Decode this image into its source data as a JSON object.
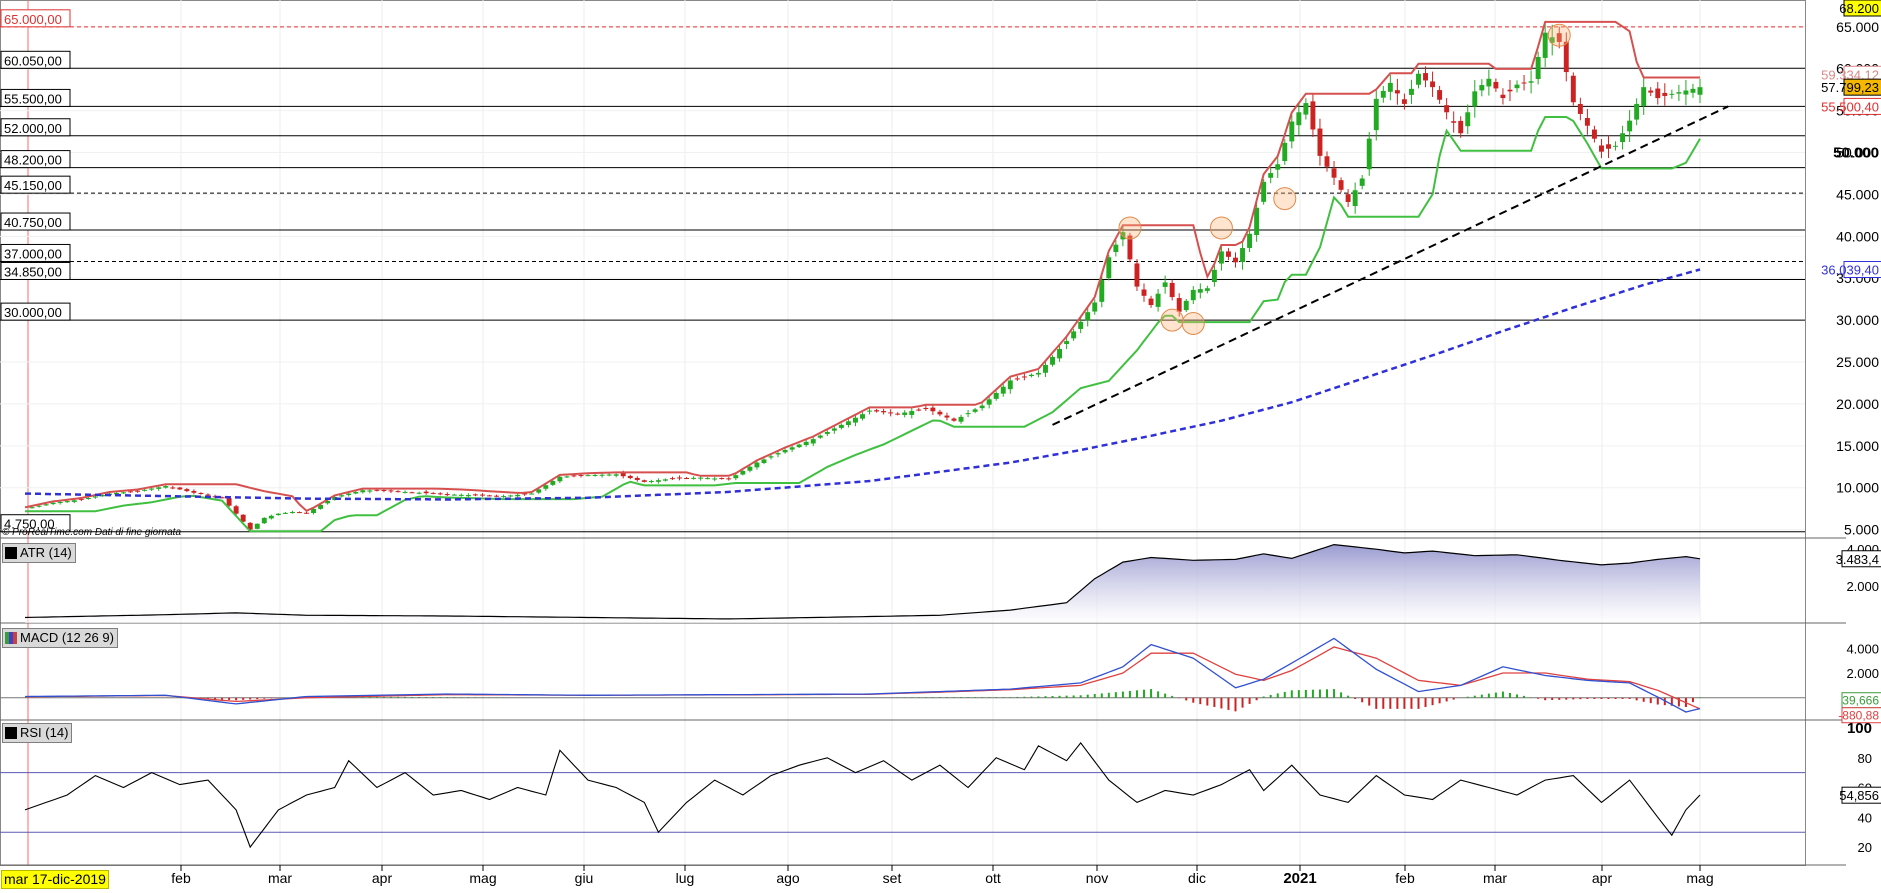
{
  "chart_data": [
    {
      "pane": "price",
      "type": "line",
      "title": "",
      "ylim": [
        4000,
        68200
      ],
      "x_months": [
        "feb",
        "mar",
        "apr",
        "mag",
        "giu",
        "lug",
        "ago",
        "set",
        "ott",
        "nov",
        "dic",
        "2021",
        "feb",
        "mar",
        "apr",
        "mag"
      ],
      "y_ticks": [
        "5.000",
        "10.000",
        "15.000",
        "20.000",
        "25.000",
        "30.000",
        "35.000",
        "40.000",
        "45.000",
        "50.000",
        "55.000",
        "60.000",
        "65.000"
      ],
      "y_tick_values": [
        5000,
        10000,
        15000,
        20000,
        25000,
        30000,
        35000,
        40000,
        45000,
        50000,
        55000,
        60000,
        65000
      ],
      "level_labels": [
        "65.000,00",
        "60.050,00",
        "55.500,00",
        "52.000,00",
        "48.200,00",
        "45.150,00",
        "40.750,00",
        "37.000,00",
        "34.850,00",
        "30.000,00",
        "4.750,00"
      ],
      "level_values": [
        65000,
        60050,
        55500,
        52000,
        48200,
        45150,
        40750,
        37000,
        34850,
        30000,
        4750
      ],
      "right_value_labels": [
        "68.200",
        "59.334,12",
        "57.799,23",
        "55.500,40",
        "50.000",
        "36.039,40"
      ],
      "right_value_values": [
        68200,
        59334.12,
        57799.23,
        55500.4,
        50000,
        36039.4
      ],
      "price_path": {
        "x_index": [
          0,
          4,
          8,
          12,
          16,
          20,
          24,
          28,
          32,
          34,
          36,
          38,
          40,
          44,
          48,
          52,
          56,
          60,
          64,
          68,
          72,
          76,
          80,
          84,
          88,
          92,
          96,
          100,
          104,
          108,
          112,
          116,
          120,
          124,
          128,
          132,
          136,
          140,
          144,
          148,
          150,
          152,
          154,
          156,
          158,
          160,
          162,
          164,
          166,
          168,
          170,
          172,
          174,
          176,
          178,
          180,
          182,
          184,
          186,
          188,
          190,
          192,
          194,
          196,
          198,
          200,
          202,
          204,
          206,
          208,
          210,
          212,
          214,
          216,
          218,
          220,
          222,
          224,
          226,
          228,
          230,
          232,
          234,
          236,
          238
        ],
        "close": [
          7500,
          8200,
          8600,
          9300,
          9600,
          10200,
          9400,
          8800,
          5000,
          6400,
          6900,
          7100,
          7000,
          8900,
          9700,
          9600,
          9400,
          9200,
          9100,
          9000,
          9300,
          11300,
          11500,
          11600,
          10700,
          11100,
          11200,
          11000,
          13000,
          14500,
          15800,
          17500,
          19200,
          18800,
          19500,
          18000,
          19800,
          22800,
          23700,
          27500,
          29800,
          32100,
          37500,
          40500,
          34000,
          31800,
          34500,
          31000,
          33600,
          33800,
          38200,
          36900,
          40300,
          46500,
          48600,
          53700,
          55900,
          49600,
          47000,
          44100,
          46900,
          56400,
          58300,
          55800,
          59400,
          57800,
          54800,
          52300,
          57300,
          58800,
          56500,
          58100,
          58500,
          64300,
          63200,
          56000,
          53200,
          50100,
          50800,
          53800,
          57800,
          56500,
          57000,
          57400,
          57799
        ]
      },
      "sma_blue": {
        "x_index": [
          0,
          20,
          40,
          60,
          80,
          100,
          120,
          140,
          150,
          160,
          170,
          180,
          190,
          200,
          210,
          220,
          230,
          238
        ],
        "values": [
          9300,
          9000,
          8700,
          8600,
          8800,
          9500,
          10800,
          13000,
          14500,
          16200,
          18000,
          20200,
          23000,
          25800,
          28700,
          31500,
          34200,
          36039
        ]
      }
    },
    {
      "pane": "atr",
      "type": "area",
      "title": "ATR (14)",
      "ylim": [
        0,
        4500
      ],
      "y_ticks": [
        "2.000",
        "4.000"
      ],
      "y_tick_values": [
        2000,
        4000
      ],
      "last_value_label": "3.483,4",
      "series": [
        {
          "name": "ATR (14)",
          "x_index": [
            0,
            20,
            30,
            40,
            60,
            80,
            100,
            120,
            130,
            140,
            148,
            152,
            156,
            160,
            166,
            172,
            176,
            180,
            186,
            192,
            196,
            200,
            206,
            212,
            218,
            224,
            228,
            232,
            236,
            238
          ],
          "values": [
            300,
            450,
            550,
            420,
            380,
            300,
            220,
            350,
            420,
            700,
            1100,
            2400,
            3300,
            3550,
            3400,
            3450,
            3750,
            3500,
            4250,
            4000,
            3800,
            3900,
            3650,
            3700,
            3400,
            3150,
            3250,
            3450,
            3600,
            3483
          ]
        }
      ]
    },
    {
      "pane": "macd",
      "type": "line",
      "title": "MACD (12 26 9)",
      "ylim": [
        -1800,
        5800
      ],
      "y_ticks": [
        "2.000",
        "4.000"
      ],
      "y_tick_values": [
        2000,
        4000
      ],
      "last_value_labels": [
        "39,666",
        "-880,88"
      ],
      "series": [
        {
          "name": "MACD",
          "x_index": [
            0,
            20,
            30,
            40,
            60,
            80,
            100,
            120,
            130,
            140,
            150,
            156,
            160,
            166,
            172,
            176,
            180,
            186,
            192,
            198,
            204,
            210,
            216,
            222,
            228,
            232,
            236,
            238
          ],
          "values": [
            100,
            200,
            -500,
            100,
            300,
            200,
            250,
            300,
            500,
            700,
            1200,
            2500,
            4300,
            3200,
            800,
            1500,
            2800,
            4800,
            2300,
            500,
            1000,
            2500,
            1800,
            1400,
            1200,
            50,
            -1150,
            -880
          ]
        },
        {
          "name": "Signal",
          "x_index": [
            0,
            20,
            30,
            40,
            60,
            80,
            100,
            120,
            130,
            140,
            150,
            156,
            160,
            166,
            172,
            176,
            180,
            186,
            192,
            198,
            204,
            210,
            216,
            222,
            228,
            232,
            236,
            238
          ],
          "values": [
            80,
            180,
            -300,
            0,
            250,
            200,
            230,
            280,
            450,
            650,
            1000,
            2000,
            3600,
            3600,
            1900,
            1400,
            2200,
            4100,
            3200,
            1400,
            1000,
            2000,
            2000,
            1500,
            1300,
            600,
            -400,
            -900
          ]
        },
        {
          "name": "Histogram",
          "x_index": [
            0,
            20,
            30,
            40,
            60,
            80,
            100,
            120,
            130,
            140,
            150,
            156,
            160,
            166,
            172,
            176,
            180,
            186,
            192,
            198,
            204,
            210,
            216,
            222,
            228,
            232,
            236,
            238
          ],
          "values": [
            20,
            20,
            -200,
            100,
            50,
            0,
            20,
            20,
            50,
            50,
            200,
            500,
            700,
            -400,
            -1100,
            100,
            600,
            700,
            -900,
            -900,
            0,
            500,
            -200,
            -100,
            -100,
            -550,
            -750,
            40
          ]
        }
      ]
    },
    {
      "pane": "rsi",
      "type": "line",
      "title": "RSI (14)",
      "ylim": [
        8,
        104
      ],
      "y_ticks": [
        "20",
        "40",
        "60",
        "80",
        "100"
      ],
      "y_tick_values": [
        20,
        40,
        60,
        80,
        100
      ],
      "bands": [
        70,
        30
      ],
      "last_value_label": "54,856",
      "series": [
        {
          "name": "RSI (14)",
          "x_index": [
            0,
            6,
            10,
            14,
            18,
            22,
            26,
            30,
            32,
            36,
            40,
            44,
            46,
            50,
            54,
            58,
            62,
            66,
            70,
            74,
            76,
            80,
            84,
            88,
            90,
            94,
            98,
            102,
            106,
            110,
            114,
            118,
            122,
            126,
            130,
            134,
            138,
            142,
            144,
            148,
            150,
            154,
            158,
            162,
            166,
            170,
            174,
            176,
            180,
            184,
            188,
            192,
            196,
            200,
            204,
            208,
            212,
            216,
            220,
            224,
            228,
            232,
            234,
            236,
            238
          ],
          "values": [
            45,
            55,
            68,
            60,
            70,
            62,
            65,
            45,
            20,
            45,
            55,
            60,
            78,
            60,
            70,
            55,
            58,
            52,
            60,
            55,
            85,
            65,
            60,
            50,
            30,
            50,
            65,
            55,
            68,
            75,
            80,
            70,
            78,
            65,
            75,
            60,
            80,
            72,
            88,
            78,
            90,
            65,
            50,
            58,
            55,
            62,
            72,
            58,
            75,
            55,
            50,
            68,
            55,
            52,
            65,
            60,
            55,
            65,
            68,
            50,
            65,
            40,
            28,
            45,
            55
          ]
        }
      ]
    }
  ],
  "labels": {
    "atr": "ATR (14)",
    "macd": "MACD (12 26 9)",
    "rsi": "RSI (14)",
    "credit": "© ProRealTime.com  Dati di fine giornata",
    "cursor_date": "mar 17-dic-2019"
  },
  "colors": {
    "up_candle": "#22aa22",
    "down_candle": "#cc2222",
    "level_red_dashed": "#e03030",
    "support_green": "#40c040",
    "resistance_red": "#d65050",
    "sma_blue": "#3030d8",
    "atr_fill": "#9090cc",
    "macd_blue": "#3050d0",
    "signal_red": "#e04040",
    "highlight_yellow": "#ffff00"
  }
}
